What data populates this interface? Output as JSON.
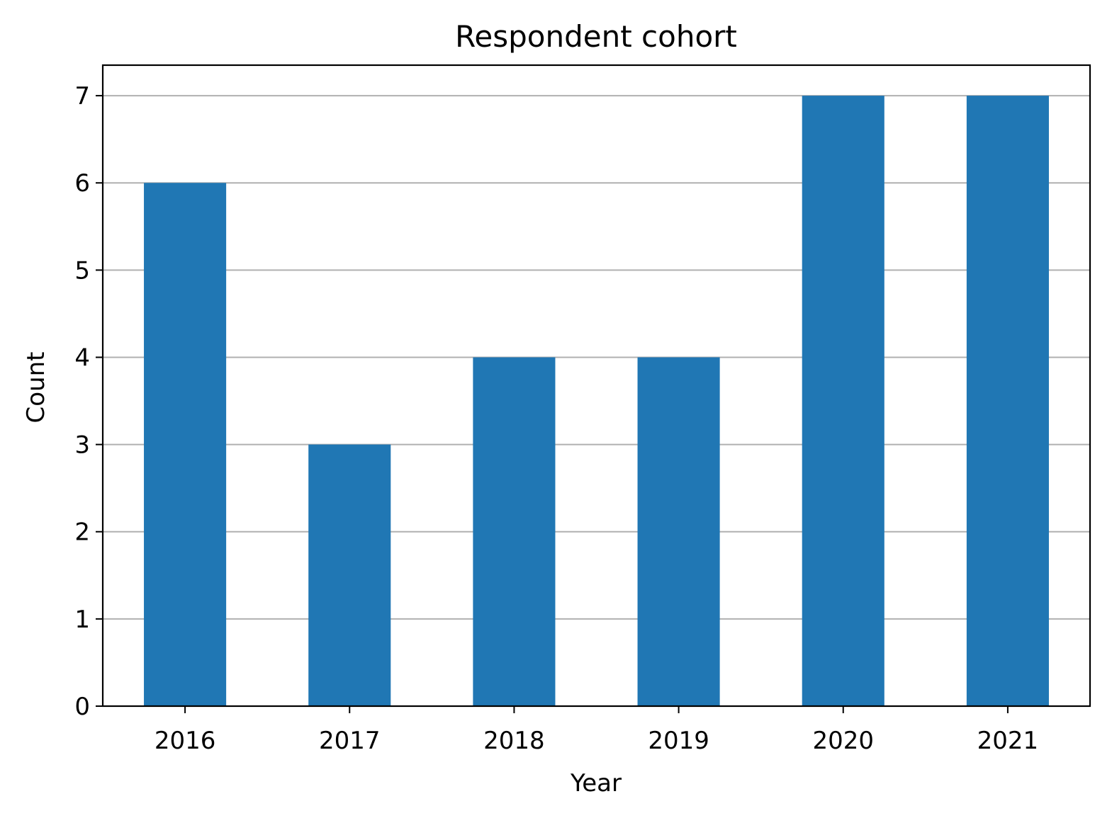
{
  "chart_data": {
    "type": "bar",
    "title": "Respondent cohort",
    "xlabel": "Year",
    "ylabel": "Count",
    "categories": [
      "2016",
      "2017",
      "2018",
      "2019",
      "2020",
      "2021"
    ],
    "values": [
      6,
      3,
      4,
      4,
      7,
      7
    ],
    "ylim": [
      0,
      7.35
    ],
    "yticks": [
      0,
      1,
      2,
      3,
      4,
      5,
      6,
      7
    ],
    "grid": "horizontal",
    "legend": "none",
    "colors": {
      "bar": "#2077b4",
      "grid": "#b0b0b0",
      "axis": "#000000"
    }
  }
}
